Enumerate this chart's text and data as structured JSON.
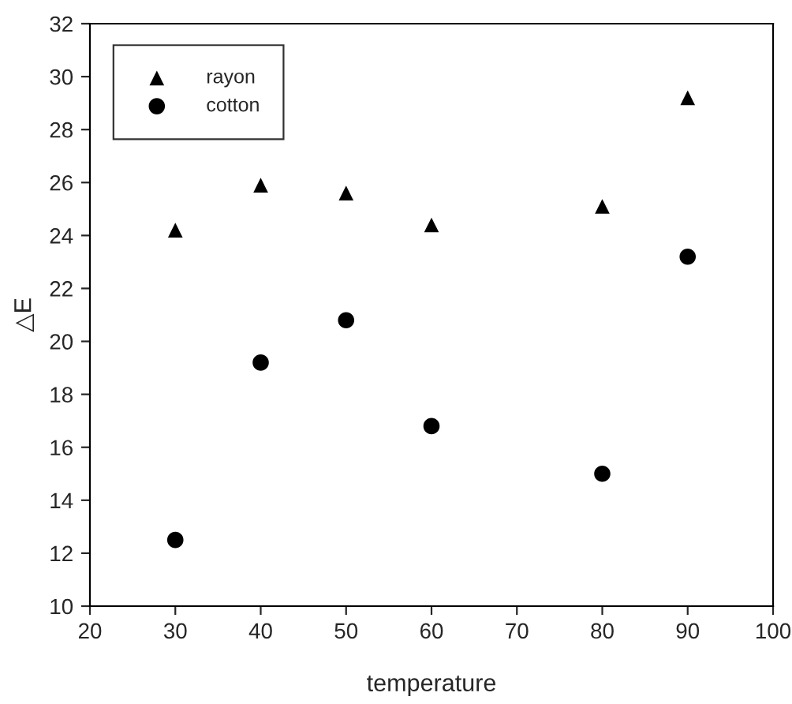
{
  "chart_data": {
    "type": "scatter",
    "xlabel": "temperature",
    "ylabel": "△E",
    "x": [
      30,
      40,
      50,
      60,
      80,
      90
    ],
    "series": [
      {
        "name": "rayon",
        "color": "#000000",
        "marker": "triangle",
        "values": [
          24.2,
          25.9,
          25.6,
          24.4,
          25.1,
          29.2
        ]
      },
      {
        "name": "cotton",
        "color": "#000000",
        "marker": "circle",
        "values": [
          12.5,
          19.2,
          20.8,
          16.8,
          15.0,
          23.2
        ]
      }
    ],
    "xlim": [
      20,
      100
    ],
    "xticks": [
      20,
      30,
      40,
      50,
      60,
      70,
      80,
      90,
      100
    ],
    "ylim": [
      10,
      32
    ],
    "yticks": [
      10,
      12,
      14,
      16,
      18,
      20,
      22,
      24,
      26,
      28,
      30,
      32
    ],
    "grid": false,
    "legend": "top left"
  }
}
